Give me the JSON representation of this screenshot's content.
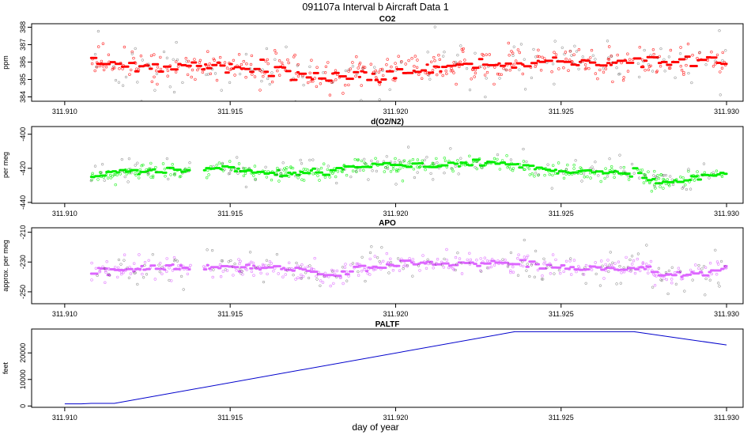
{
  "title": "091107a   Interval b Aircraft Data 1",
  "xlabel": "day of year",
  "chart_data": [
    {
      "type": "scatter",
      "title": "CO2",
      "ylabel": "ppm",
      "xlim": [
        311.909,
        311.9305
      ],
      "ylim": [
        383.75,
        388.2
      ],
      "xticks": [
        311.91,
        311.915,
        311.92,
        311.925,
        311.93
      ],
      "xtick_labels": [
        "311.910",
        "311.915",
        "311.920",
        "311.925",
        "311.930"
      ],
      "yticks": [
        384,
        385,
        386,
        387,
        388
      ],
      "ytick_labels": [
        "384",
        "385",
        "386",
        "387",
        "388"
      ],
      "series": [
        {
          "name": "CO2",
          "color": "#ff0000",
          "gap": null,
          "trend": {
            "x": [
              311.9108,
              311.9125,
              311.914,
              311.916,
              311.918,
              311.9195,
              311.921,
              311.923,
              311.925,
              311.9265,
              311.928,
              311.93
            ],
            "y": [
              386.0,
              385.7,
              385.8,
              385.6,
              385.1,
              385.3,
              385.6,
              385.8,
              386.0,
              385.9,
              386.1,
              386.1
            ]
          },
          "noise": 0.5
        }
      ]
    },
    {
      "type": "scatter",
      "title": "d(O2/N2)",
      "ylabel": "per meg",
      "xlim": [
        311.909,
        311.9305
      ],
      "ylim": [
        -440.5,
        -395.5
      ],
      "xticks": [
        311.91,
        311.915,
        311.92,
        311.925,
        311.93
      ],
      "xtick_labels": [
        "311.910",
        "311.915",
        "311.920",
        "311.925",
        "311.930"
      ],
      "yticks": [
        -440,
        -420,
        -400
      ],
      "ytick_labels": [
        "-440",
        "-420",
        "-400"
      ],
      "series": [
        {
          "name": "d(O2/N2)",
          "color": "#00ee00",
          "gap": [
            311.9138,
            311.9142
          ],
          "trend": {
            "x": [
              311.9108,
              311.912,
              311.9135,
              311.915,
              311.916,
              311.917,
              311.918,
              311.9195,
              311.921,
              311.923,
              311.924,
              311.9245,
              311.926,
              311.9273,
              311.9278,
              311.929,
              311.93
            ],
            "y": [
              -424,
              -422,
              -421,
              -420,
              -423,
              -422,
              -421,
              -418,
              -418,
              -417,
              -419,
              -422,
              -422,
              -423,
              -428,
              -426,
              -422
            ]
          },
          "noise": 2.5
        }
      ]
    },
    {
      "type": "scatter",
      "title": "APO",
      "ylabel": "approx. per meg",
      "xlim": [
        311.909,
        311.9305
      ],
      "ylim": [
        -258,
        -207
      ],
      "xticks": [
        311.91,
        311.915,
        311.92,
        311.925,
        311.93
      ],
      "xtick_labels": [
        "311.910",
        "311.915",
        "311.920",
        "311.925",
        "311.930"
      ],
      "yticks": [
        -250,
        -230,
        -210
      ],
      "ytick_labels": [
        "-250",
        "-230",
        "-210"
      ],
      "series": [
        {
          "name": "APO",
          "color": "#dd66ff",
          "gap": [
            311.9138,
            311.9142
          ],
          "trend": {
            "x": [
              311.9108,
              311.912,
              311.9135,
              311.915,
              311.917,
              311.918,
              311.9195,
              311.921,
              311.923,
              311.924,
              311.9245,
              311.926,
              311.9275,
              311.928,
              311.929,
              311.93
            ],
            "y": [
              -236,
              -235,
              -234,
              -233,
              -236,
              -238,
              -232,
              -230,
              -231,
              -232,
              -233,
              -234,
              -234,
              -240,
              -238,
              -233
            ]
          },
          "noise": 3.5
        }
      ]
    },
    {
      "type": "line",
      "title": "PALTF",
      "ylabel": "feet",
      "xlim": [
        311.909,
        311.9305
      ],
      "ylim": [
        -500,
        29000
      ],
      "xticks": [
        311.91,
        311.915,
        311.92,
        311.925,
        311.93
      ],
      "xtick_labels": [
        "311.910",
        "311.915",
        "311.920",
        "311.925",
        "311.930"
      ],
      "yticks": [
        0,
        10000,
        20000
      ],
      "ytick_labels": [
        "0",
        "10000",
        "20000"
      ],
      "series": [
        {
          "name": "PALTF",
          "color": "#0000cc",
          "x": [
            311.91,
            311.9105,
            311.9108,
            311.9115,
            311.9236,
            311.9272,
            311.93
          ],
          "y": [
            800,
            800,
            1000,
            1000,
            28000,
            28000,
            23000
          ]
        }
      ]
    }
  ]
}
